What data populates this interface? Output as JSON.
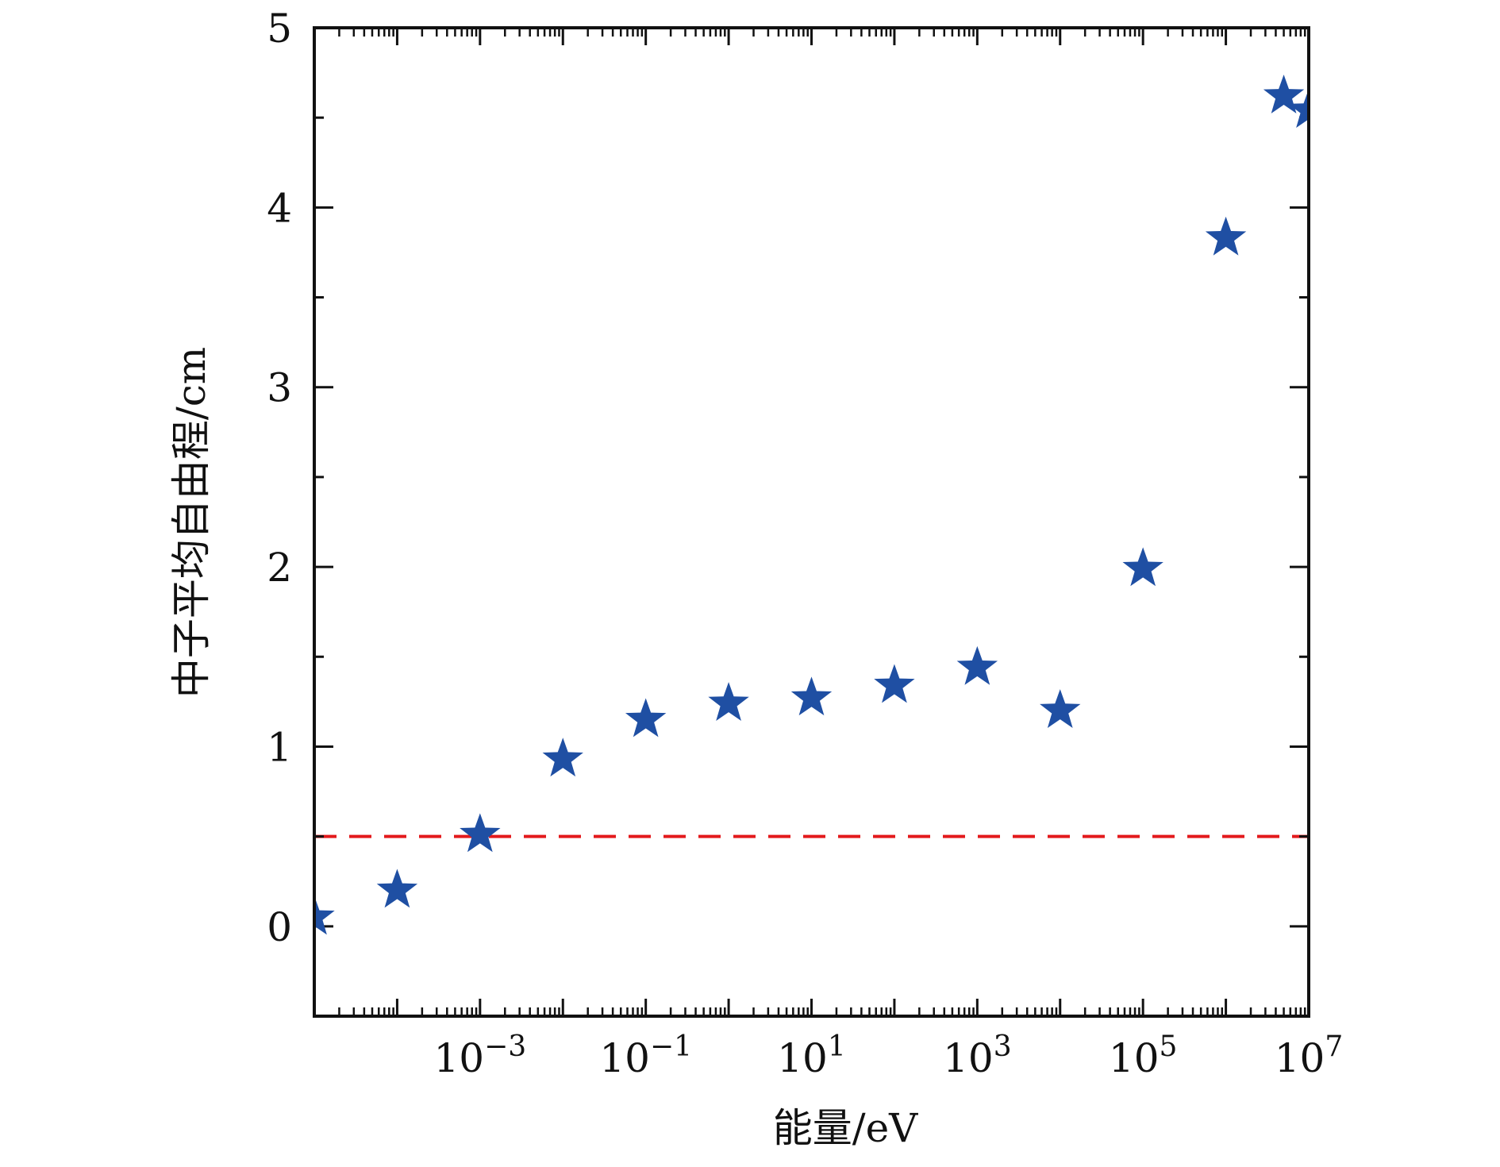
{
  "chart_data": {
    "type": "scatter",
    "title": "",
    "xlabel": "能量/eV",
    "ylabel": "中子平均自由程/cm",
    "xscale": "log",
    "xlim": [
      1e-05,
      10000000.0
    ],
    "ylim": [
      -0.5,
      5
    ],
    "grid": false,
    "x_tick_labels": [
      {
        "base": "10",
        "exp": "−3",
        "value": 0.001
      },
      {
        "base": "10",
        "exp": "−1",
        "value": 0.1
      },
      {
        "base": "10",
        "exp": "1",
        "value": 10
      },
      {
        "base": "10",
        "exp": "3",
        "value": 1000
      },
      {
        "base": "10",
        "exp": "5",
        "value": 100000
      },
      {
        "base": "10",
        "exp": "7",
        "value": 10000000
      }
    ],
    "y_tick_labels": [
      "0",
      "1",
      "2",
      "3",
      "4",
      "5"
    ],
    "y_tick_values": [
      0,
      1,
      2,
      3,
      4,
      5
    ],
    "series": [
      {
        "marker": "star",
        "color": "#1f4fa3",
        "points": [
          {
            "x": 1e-05,
            "y": 0.05
          },
          {
            "x": 0.0001,
            "y": 0.2
          },
          {
            "x": 0.001,
            "y": 0.51
          },
          {
            "x": 0.01,
            "y": 0.93
          },
          {
            "x": 0.1,
            "y": 1.15
          },
          {
            "x": 1,
            "y": 1.24
          },
          {
            "x": 10,
            "y": 1.27
          },
          {
            "x": 100,
            "y": 1.34
          },
          {
            "x": 1000,
            "y": 1.44
          },
          {
            "x": 10000,
            "y": 1.2
          },
          {
            "x": 100000,
            "y": 1.99
          },
          {
            "x": 1000000,
            "y": 3.83
          },
          {
            "x": 5000000,
            "y": 4.62
          },
          {
            "x": 10000000,
            "y": 4.54
          }
        ]
      }
    ],
    "reference_line": {
      "y": 0.5,
      "color": "#e31a1c",
      "style": "dashed"
    }
  }
}
